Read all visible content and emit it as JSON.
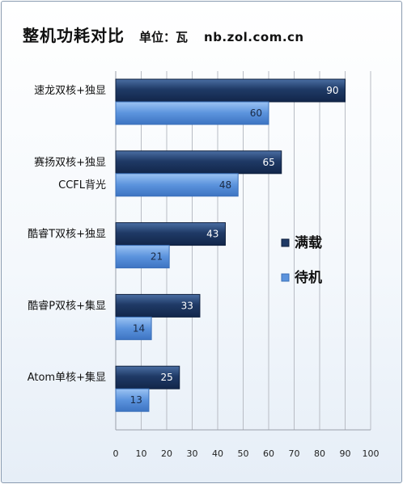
{
  "header": {
    "title": "整机功耗对比",
    "unit": "单位：瓦",
    "site": "nb.zol.com.cn"
  },
  "colors": {
    "full_load": "#1f3a66",
    "standby": "#5b93dd"
  },
  "chart_data": {
    "type": "bar",
    "orientation": "horizontal",
    "categories": [
      "速龙双核+独显",
      "赛扬双核+独显\nCCFL背光",
      "酷睿T双核+独显",
      "酷睿P双核+集显",
      "Atom单核+集显"
    ],
    "series": [
      {
        "name": "满载",
        "values": [
          90,
          65,
          43,
          33,
          25
        ]
      },
      {
        "name": "待机",
        "values": [
          60,
          48,
          21,
          14,
          13
        ]
      }
    ],
    "xlim": [
      0,
      100
    ],
    "xticks": [
      0,
      10,
      20,
      30,
      40,
      50,
      60,
      70,
      80,
      90,
      100
    ],
    "grid": true,
    "legend": "right"
  }
}
